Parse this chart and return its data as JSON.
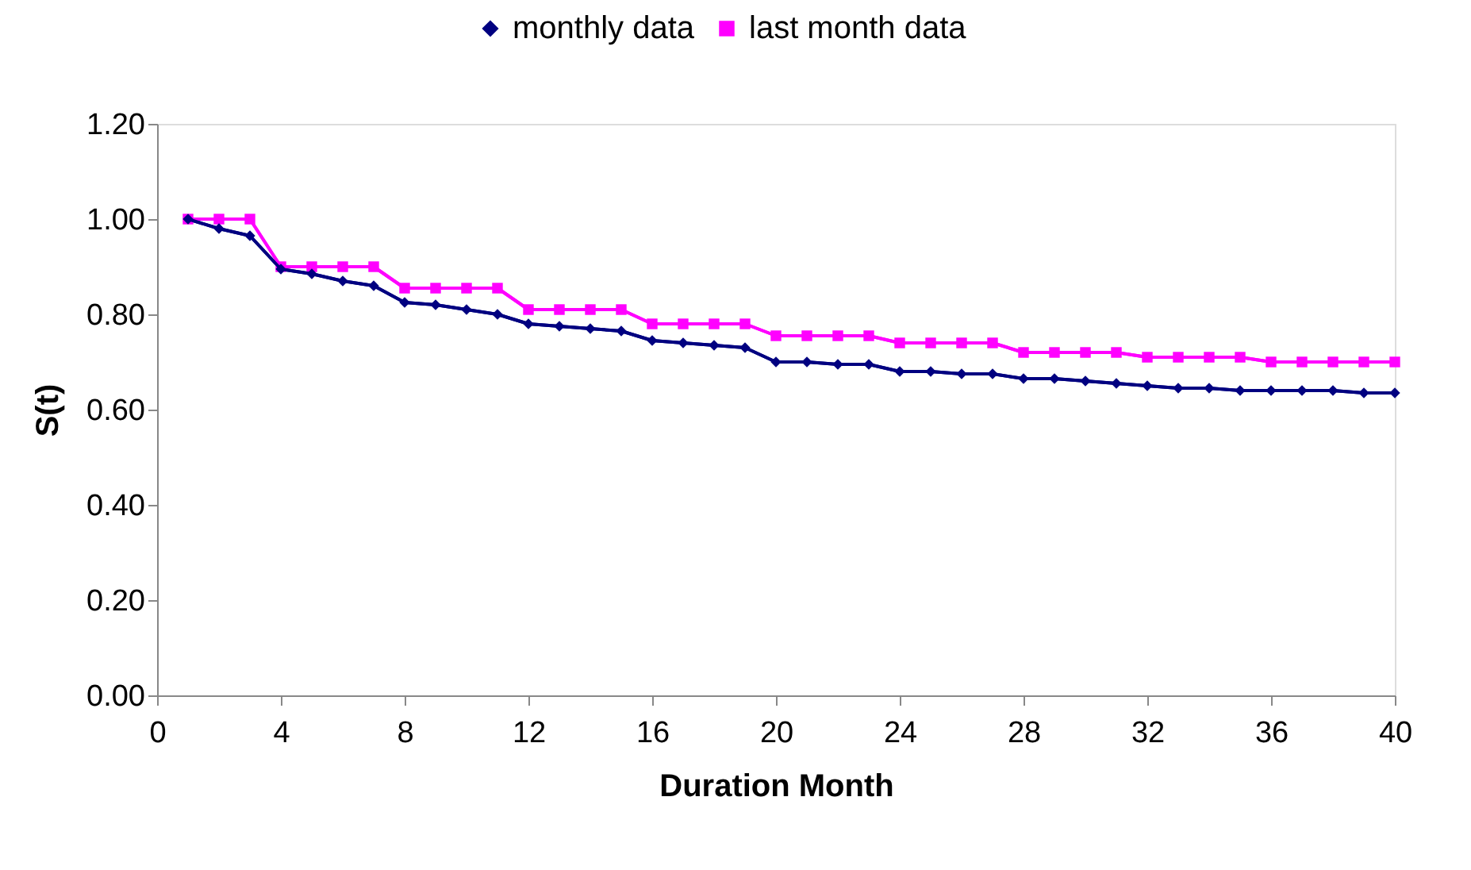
{
  "chart_data": {
    "type": "line",
    "xlabel": "Duration Month",
    "ylabel": "S(t)",
    "x": [
      1,
      2,
      3,
      4,
      5,
      6,
      7,
      8,
      9,
      10,
      11,
      12,
      13,
      14,
      15,
      16,
      17,
      18,
      19,
      20,
      21,
      22,
      23,
      24,
      25,
      26,
      27,
      28,
      29,
      30,
      31,
      32,
      33,
      34,
      35,
      36,
      37,
      38,
      39,
      40
    ],
    "series": [
      {
        "name": "monthly data",
        "color": "#000080",
        "marker": "diamond",
        "values": [
          1.0,
          0.98,
          0.965,
          0.895,
          0.885,
          0.87,
          0.86,
          0.825,
          0.82,
          0.81,
          0.8,
          0.78,
          0.775,
          0.77,
          0.765,
          0.745,
          0.74,
          0.735,
          0.73,
          0.7,
          0.7,
          0.695,
          0.695,
          0.68,
          0.68,
          0.675,
          0.675,
          0.665,
          0.665,
          0.66,
          0.655,
          0.65,
          0.645,
          0.645,
          0.64,
          0.64,
          0.64,
          0.64,
          0.635,
          0.635
        ]
      },
      {
        "name": "last month data",
        "color": "#ff00ff",
        "marker": "square",
        "values": [
          1.0,
          1.0,
          1.0,
          0.9,
          0.9,
          0.9,
          0.9,
          0.855,
          0.855,
          0.855,
          0.855,
          0.81,
          0.81,
          0.81,
          0.81,
          0.78,
          0.78,
          0.78,
          0.78,
          0.755,
          0.755,
          0.755,
          0.755,
          0.74,
          0.74,
          0.74,
          0.74,
          0.72,
          0.72,
          0.72,
          0.72,
          0.71,
          0.71,
          0.71,
          0.71,
          0.7,
          0.7,
          0.7,
          0.7,
          0.7
        ]
      }
    ],
    "xlim": [
      0,
      40
    ],
    "xticks": [
      0,
      4,
      8,
      12,
      16,
      20,
      24,
      28,
      32,
      36,
      40
    ],
    "ylim": [
      0,
      1.2
    ],
    "yticks": [
      {
        "value": 0,
        "label": "0.00"
      },
      {
        "value": 0.2,
        "label": "0.20"
      },
      {
        "value": 0.4,
        "label": "0.40"
      },
      {
        "value": 0.6,
        "label": "0.60"
      },
      {
        "value": 0.8,
        "label": "0.80"
      },
      {
        "value": 1.0,
        "label": "1.00"
      },
      {
        "value": 1.2,
        "label": "1.20"
      }
    ],
    "grid": false,
    "legend": "top",
    "line_style": "solid"
  }
}
